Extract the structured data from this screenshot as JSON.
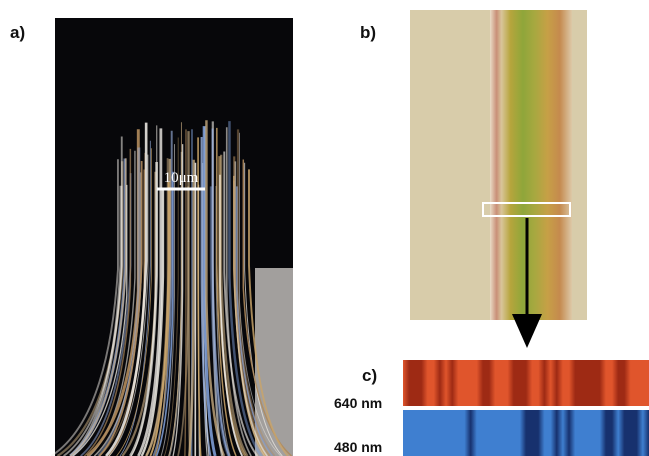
{
  "panels": [
    {
      "label": "a)",
      "scale_bar": "10μm"
    },
    {
      "label": "b)"
    },
    {
      "label": "c)",
      "rows": [
        "640 nm",
        "480 nm"
      ]
    }
  ]
}
